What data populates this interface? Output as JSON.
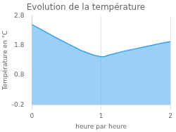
{
  "chart_data": {
    "type": "area",
    "title": "Evolution de la température",
    "xlabel": "heure par heure",
    "ylabel": "Température en °C",
    "x": [
      0,
      0.1,
      0.2,
      0.3,
      0.4,
      0.5,
      0.6,
      0.7,
      0.8,
      0.9,
      1.0,
      1.05,
      1.1,
      1.2,
      1.3,
      1.4,
      1.5,
      1.6,
      1.7,
      1.8,
      1.9,
      2.0
    ],
    "values": [
      2.5,
      2.38,
      2.25,
      2.12,
      2.0,
      1.88,
      1.76,
      1.64,
      1.55,
      1.47,
      1.42,
      1.43,
      1.47,
      1.53,
      1.59,
      1.64,
      1.69,
      1.74,
      1.79,
      1.84,
      1.89,
      1.93
    ],
    "xlim": [
      0,
      2
    ],
    "xticks": [
      0,
      1,
      2
    ],
    "ylim": [
      -0.2,
      2.8
    ],
    "yticks": [
      -0.2,
      0.8,
      1.8,
      2.8
    ],
    "grid": "x"
  }
}
